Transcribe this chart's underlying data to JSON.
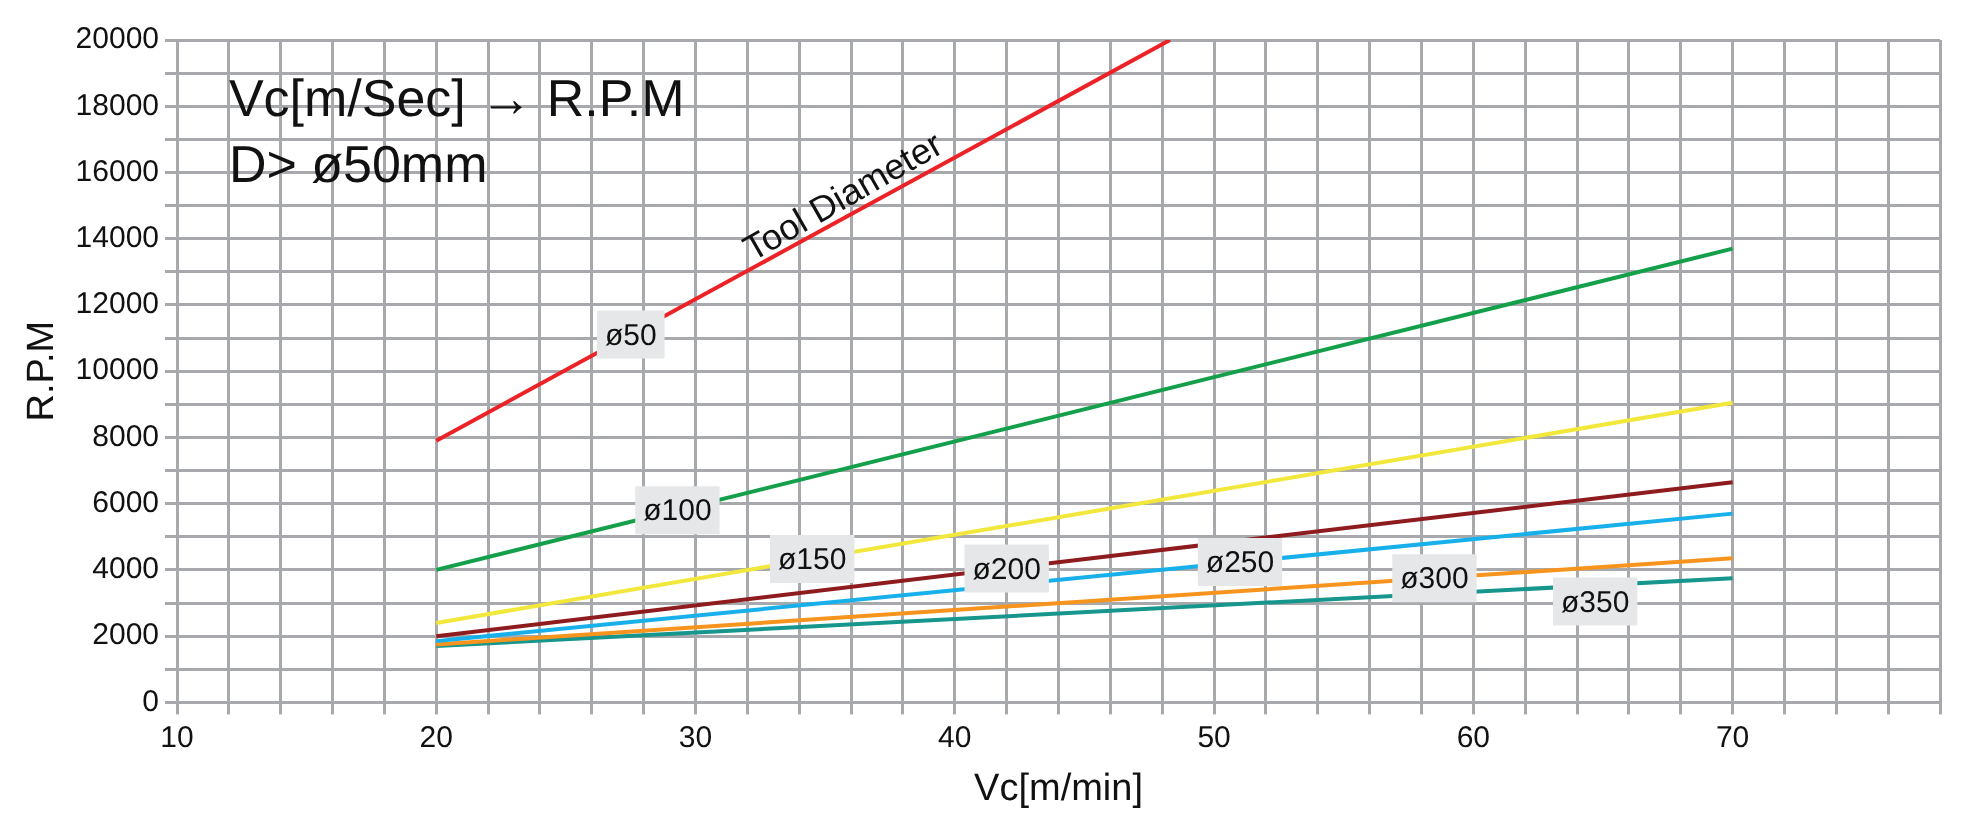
{
  "chart_data": {
    "type": "line",
    "xlabel": "Vc[m/min]",
    "ylabel": "R.P.M",
    "annotations": [
      "Vc[m/Sec] → R.P.M",
      "D> ø50mm",
      "Tool Diameter"
    ],
    "series": [
      {
        "name": "ø50",
        "color": "#ec2227",
        "x": [
          20,
          48.3
        ],
        "values": [
          7900,
          20000
        ]
      },
      {
        "name": "ø100",
        "color": "#14a04a",
        "x": [
          20,
          70
        ],
        "values": [
          4000,
          13700
        ]
      },
      {
        "name": "ø150",
        "color": "#f2e83c",
        "x": [
          20,
          70
        ],
        "values": [
          2400,
          9050
        ]
      },
      {
        "name": "ø200",
        "color": "#8e1b1e",
        "x": [
          20,
          70
        ],
        "values": [
          2000,
          6650
        ]
      },
      {
        "name": "ø250",
        "color": "#17b0ea",
        "x": [
          20,
          70
        ],
        "values": [
          1850,
          5700
        ]
      },
      {
        "name": "ø300",
        "color": "#f7941d",
        "x": [
          20,
          70
        ],
        "values": [
          1750,
          4350
        ]
      },
      {
        "name": "ø350",
        "color": "#16968c",
        "x": [
          20,
          70
        ],
        "values": [
          1700,
          3750
        ]
      }
    ],
    "xlim": [
      10,
      78
    ],
    "xticks": [
      10,
      {
        "value": 12,
        "label": null
      },
      {
        "value": 14,
        "label": null
      },
      {
        "value": 16,
        "label": null
      },
      {
        "value": 18,
        "label": null
      },
      20,
      {
        "value": 22,
        "label": null
      },
      {
        "value": 24,
        "label": null
      },
      {
        "value": 26,
        "label": null
      },
      {
        "value": 28,
        "label": null
      },
      30,
      {
        "value": 32,
        "label": null
      },
      {
        "value": 34,
        "label": null
      },
      {
        "value": 36,
        "label": null
      },
      {
        "value": 38,
        "label": null
      },
      40,
      {
        "value": 42,
        "label": null
      },
      {
        "value": 44,
        "label": null
      },
      {
        "value": 46,
        "label": null
      },
      {
        "value": 48,
        "label": null
      },
      50,
      {
        "value": 52,
        "label": null
      },
      {
        "value": 54,
        "label": null
      },
      {
        "value": 56,
        "label": null
      },
      {
        "value": 58,
        "label": null
      },
      60,
      {
        "value": 62,
        "label": null
      },
      {
        "value": 64,
        "label": null
      },
      {
        "value": 66,
        "label": null
      },
      {
        "value": 68,
        "label": null
      },
      70,
      {
        "value": 72,
        "label": null
      },
      {
        "value": 74,
        "label": null
      },
      {
        "value": 76,
        "label": null
      },
      {
        "value": 78,
        "label": null
      }
    ],
    "ylim": [
      0,
      20000
    ],
    "yticks": [
      0,
      {
        "value": 1000,
        "label": null
      },
      2000,
      {
        "value": 3000,
        "label": null
      },
      4000,
      {
        "value": 5000,
        "label": null
      },
      6000,
      {
        "value": 7000,
        "label": null
      },
      8000,
      {
        "value": 9000,
        "label": null
      },
      10000,
      {
        "value": 11000,
        "label": null
      },
      12000,
      {
        "value": 13000,
        "label": null
      },
      14000,
      {
        "value": 15000,
        "label": null
      },
      16000,
      {
        "value": 17000,
        "label": null
      },
      18000,
      {
        "value": 19000,
        "label": null
      },
      20000
    ],
    "grid": true,
    "legend": false,
    "marker": "none",
    "line_style": "solid"
  }
}
